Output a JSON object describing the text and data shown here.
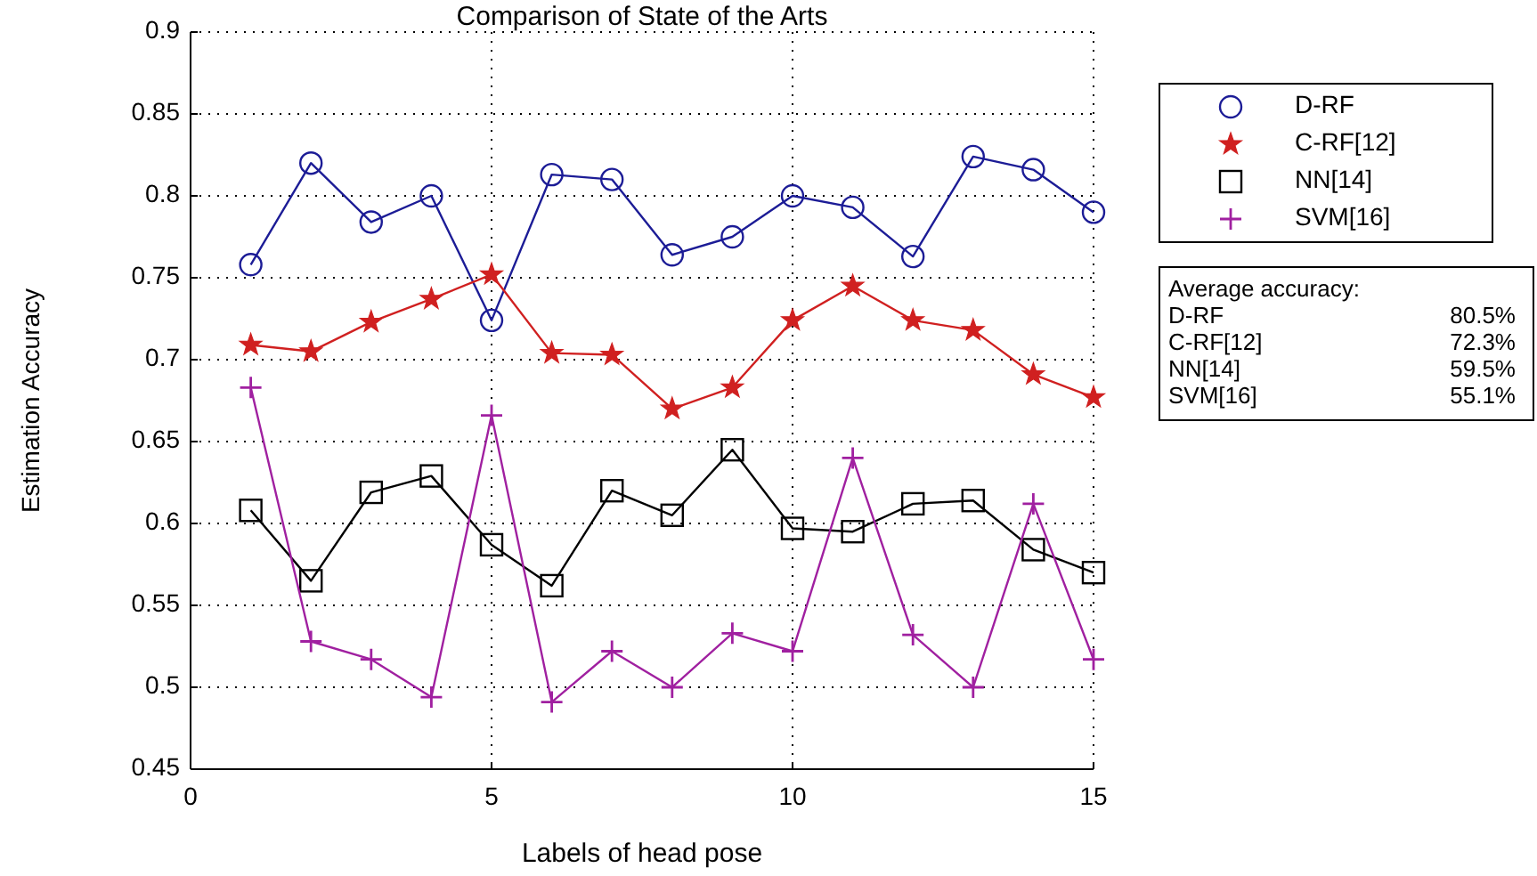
{
  "chart_data": {
    "type": "line",
    "title": "Comparison of State of the Arts",
    "xlabel": "Labels of head pose",
    "ylabel": "Estimation Accuracy",
    "x": [
      1,
      2,
      3,
      4,
      5,
      6,
      7,
      8,
      9,
      10,
      11,
      12,
      13,
      14,
      15
    ],
    "series": [
      {
        "name": "D-RF",
        "color": "#1c1c96",
        "marker": "circle",
        "values": [
          0.758,
          0.82,
          0.784,
          0.8,
          0.724,
          0.813,
          0.81,
          0.764,
          0.775,
          0.8,
          0.793,
          0.763,
          0.824,
          0.816,
          0.79
        ]
      },
      {
        "name": "C-RF[12]",
        "color": "#d02020",
        "marker": "star",
        "values": [
          0.709,
          0.705,
          0.723,
          0.737,
          0.752,
          0.704,
          0.703,
          0.67,
          0.683,
          0.724,
          0.745,
          0.724,
          0.718,
          0.691,
          0.677
        ]
      },
      {
        "name": "NN[14]",
        "color": "#000000",
        "marker": "square",
        "values": [
          0.608,
          0.565,
          0.619,
          0.629,
          0.587,
          0.562,
          0.62,
          0.605,
          0.645,
          0.597,
          0.595,
          0.612,
          0.614,
          0.584,
          0.57
        ]
      },
      {
        "name": "SVM[16]",
        "color": "#a020a0",
        "marker": "cross",
        "values": [
          0.683,
          0.528,
          0.517,
          0.494,
          0.666,
          0.491,
          0.522,
          0.5,
          0.533,
          0.522,
          0.64,
          0.532,
          0.5,
          0.612,
          0.517
        ]
      }
    ],
    "xlim": [
      0,
      15
    ],
    "xticks": [
      0,
      5,
      10,
      15
    ],
    "ylim": [
      0.45,
      0.9
    ],
    "yticks": [
      {
        "value": 0.45,
        "label": "0.45"
      },
      {
        "value": 0.5,
        "label": "0.5"
      },
      {
        "value": 0.55,
        "label": "0.55"
      },
      {
        "value": 0.6,
        "label": "0.6"
      },
      {
        "value": 0.65,
        "label": "0.65"
      },
      {
        "value": 0.7,
        "label": "0.7"
      },
      {
        "value": 0.75,
        "label": "0.75"
      },
      {
        "value": 0.8,
        "label": "0.8"
      },
      {
        "value": 0.85,
        "label": "0.85"
      },
      {
        "value": 0.9,
        "label": "0.9"
      }
    ],
    "grid": true,
    "line_style": "solid",
    "legend": "top right",
    "annotations": [
      "Average accuracy:",
      "D-RF 80.5%",
      "C-RF[12] 72.3%",
      "NN[14] 59.5%",
      "SVM[16] 55.1%"
    ]
  }
}
